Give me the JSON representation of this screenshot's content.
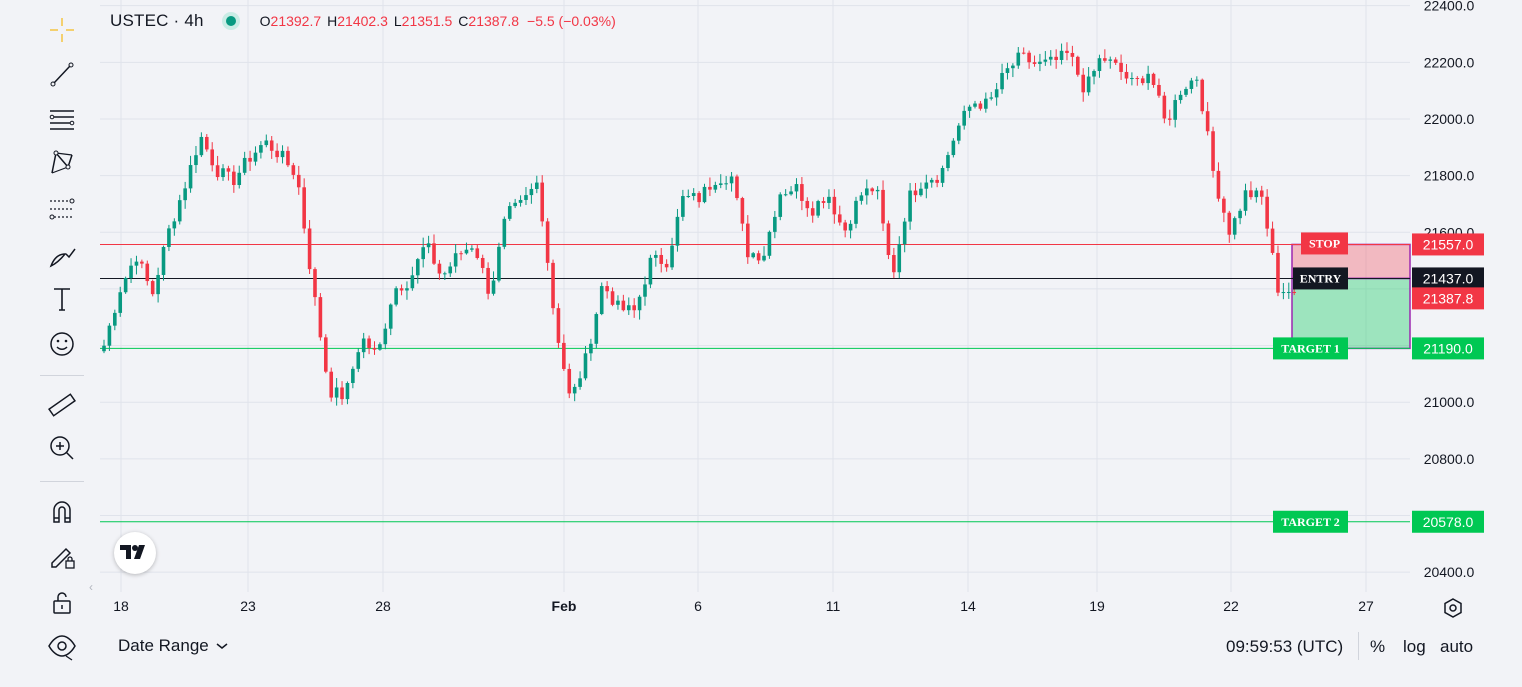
{
  "header": {
    "symbol": "USTEC · 4h",
    "open_key": "O",
    "open": "21392.7",
    "high_key": "H",
    "high": "21402.3",
    "low_key": "L",
    "low": "21351.5",
    "close_key": "C",
    "close": "21387.8",
    "change": "−5.5 (−0.03%)"
  },
  "toolbar": [
    {
      "name": "crosshair-icon"
    },
    {
      "name": "trend-line-icon"
    },
    {
      "name": "horizontal-lines-icon"
    },
    {
      "name": "pattern-icon"
    },
    {
      "name": "fib-retracement-icon"
    },
    {
      "name": "brush-icon"
    },
    {
      "name": "text-icon"
    },
    {
      "name": "emoji-icon"
    },
    {
      "name": "ruler-icon"
    },
    {
      "name": "zoom-in-icon"
    },
    {
      "name": "magnet-icon"
    },
    {
      "name": "lock-drawing-icon"
    },
    {
      "name": "unlock-icon"
    },
    {
      "name": "eye-icon"
    }
  ],
  "bottom_bar": {
    "date_range": "Date Range",
    "clock": "09:59:53 (UTC)",
    "percent": "%",
    "log": "log",
    "auto": "auto"
  },
  "colors": {
    "up": "#089981",
    "down": "#f23645",
    "stop_line": "#f23645",
    "target_line": "#00c853",
    "entry_line": "#131722"
  },
  "chart_data": {
    "type": "candlestick",
    "y_axis": {
      "min": 20330,
      "max": 22420,
      "ticks": [
        20400,
        20600,
        20800,
        21000,
        21200,
        21400,
        21600,
        21800,
        22000,
        22200,
        22400
      ],
      "tick_labels": [
        "20400.0",
        "20600.0",
        "20800.0",
        "21000.0",
        "21200.0",
        "21400.0",
        "21600.0",
        "21800.0",
        "22000.0",
        "22200.0",
        "22400.0"
      ]
    },
    "x_ticks": [
      "18",
      "23",
      "28",
      "Feb",
      "6",
      "11",
      "14",
      "19",
      "22",
      "27"
    ],
    "grid": true,
    "levels": [
      {
        "label": "STOP",
        "price": 21557.0,
        "price_label": "21557.0",
        "kind": "stop"
      },
      {
        "label": "ENTRY",
        "price": 21437.0,
        "price_label": "21437.0",
        "kind": "entry"
      },
      {
        "label": "TARGET 1",
        "price": 21190.0,
        "price_label": "21190.0",
        "kind": "target"
      },
      {
        "label": "TARGET 2",
        "price": 20578.0,
        "price_label": "20578.0",
        "kind": "target"
      }
    ],
    "last_price": {
      "price": 21387.8,
      "label": "21387.8"
    },
    "position": {
      "entry": 21437.0,
      "stop": 21557.0,
      "target": 21190.0
    },
    "anchors": [
      21200,
      21400,
      21520,
      21380,
      21600,
      21760,
      21940,
      21820,
      21780,
      21860,
      21920,
      21870,
      21800,
      21400,
      21040,
      21020,
      21230,
      21160,
      21400,
      21430,
      21560,
      21440,
      21520,
      21560,
      21380,
      21660,
      21700,
      21780,
      21300,
      21000,
      21160,
      21420,
      21330,
      21320,
      21500,
      21500,
      21720,
      21720,
      21790,
      21800,
      21530,
      21520,
      21740,
      21760,
      21680,
      21740,
      21600,
      21730,
      21760,
      21440,
      21720,
      21790,
      21800,
      21960,
      22060,
      22050,
      22160,
      22220,
      22190,
      22200,
      22230,
      22100,
      22220,
      22180,
      22120,
      22170,
      21980,
      22110,
      22150,
      21800,
      21600,
      21740,
      21720,
      21400,
      21390
    ]
  }
}
